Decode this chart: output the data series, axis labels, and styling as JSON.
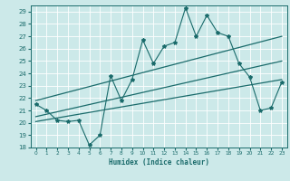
{
  "title": "",
  "xlabel": "Humidex (Indice chaleur)",
  "ylabel": "",
  "bg_color": "#cce9e9",
  "grid_color": "#ffffff",
  "line_color": "#1a6b6b",
  "xlim": [
    -0.5,
    23.5
  ],
  "ylim": [
    18,
    29.5
  ],
  "xticks": [
    0,
    1,
    2,
    3,
    4,
    5,
    6,
    7,
    8,
    9,
    10,
    11,
    12,
    13,
    14,
    15,
    16,
    17,
    18,
    19,
    20,
    21,
    22,
    23
  ],
  "yticks": [
    18,
    19,
    20,
    21,
    22,
    23,
    24,
    25,
    26,
    27,
    28,
    29
  ],
  "series1_x": [
    0,
    1,
    2,
    3,
    4,
    5,
    6,
    7,
    8,
    9,
    10,
    11,
    12,
    13,
    14,
    15,
    16,
    17,
    18,
    19,
    20,
    21,
    22,
    23
  ],
  "series1_y": [
    21.5,
    21.0,
    20.2,
    20.1,
    20.2,
    18.2,
    19.0,
    23.8,
    21.8,
    23.5,
    26.7,
    24.8,
    26.2,
    26.5,
    29.3,
    27.0,
    28.7,
    27.3,
    27.0,
    24.8,
    23.7,
    21.0,
    21.2,
    23.3
  ],
  "line1_x": [
    0,
    23
  ],
  "line1_y": [
    21.8,
    27.0
  ],
  "line2_x": [
    0,
    23
  ],
  "line2_y": [
    20.5,
    25.0
  ],
  "line3_x": [
    0,
    23
  ],
  "line3_y": [
    20.1,
    23.5
  ],
  "figsize": [
    3.2,
    2.0
  ],
  "dpi": 100
}
